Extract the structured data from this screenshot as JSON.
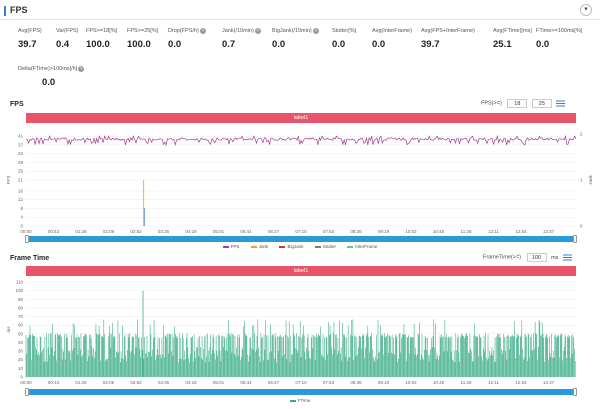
{
  "header": {
    "title": "FPS",
    "collapse_icon": "chevron-down-icon"
  },
  "metrics": [
    {
      "label": "Avg(FPS)",
      "value": "39.7",
      "help": false
    },
    {
      "label": "Var(FPS)",
      "value": "0.4",
      "help": false
    },
    {
      "label": "FPS>=18[%]",
      "value": "100.0",
      "help": false
    },
    {
      "label": "FPS>=25[%]",
      "value": "100.0",
      "help": false
    },
    {
      "label": "Drop(FPS/h)",
      "value": "0.0",
      "help": true
    },
    {
      "label": "Jank(/10min)",
      "value": "0.7",
      "help": true
    },
    {
      "label": "BigJank(/10min)",
      "value": "0.0",
      "help": true
    },
    {
      "label": "Stutter[%]",
      "value": "0.0",
      "help": false
    },
    {
      "label": "Avg(InterFrame)",
      "value": "0.0",
      "help": false
    },
    {
      "label": "Avg(FPS+InterFrame)",
      "value": "39.7",
      "help": false
    },
    {
      "label": "Avg(FTime)[ms]",
      "value": "25.1",
      "help": false
    },
    {
      "label": "FTime>=100ms[%]",
      "value": "0.0",
      "help": false
    },
    {
      "label": "Delta(FTime)>100ms[/h]",
      "value": "0.0",
      "help": true
    }
  ],
  "fps_section": {
    "title": "FPS",
    "threshold_label": "FPS(>=)",
    "threshold_1": "18",
    "threshold_2": "25",
    "band_label": "label1"
  },
  "frametime_section": {
    "title": "Frame Time",
    "threshold_label": "FrameTime(>=)",
    "threshold_value": "100",
    "threshold_unit": "ms",
    "band_label": "label1"
  },
  "colors": {
    "fps": "#a33d96",
    "jank": "#f0a030",
    "bigjank": "#c0392b",
    "stutter": "#7a7a7a",
    "interframe": "#5cc8a8",
    "ftime": "#3fae8a",
    "band": "#e8546a",
    "scrollbar": "#2a9bd8",
    "accent": "#3a7bd5"
  },
  "chart_data": [
    {
      "type": "line",
      "name": "fps-chart",
      "ylabel": "FPS",
      "y2label": "Jank",
      "ylim": [
        0,
        42
      ],
      "yticks": [
        0,
        4,
        8,
        12,
        16,
        21,
        25,
        29,
        33,
        37,
        41
      ],
      "y2lim": [
        0,
        2
      ],
      "y2ticks": [
        0,
        1,
        2
      ],
      "x_ticks": [
        "00:00",
        "00:43",
        "01:26",
        "02:09",
        "02:52",
        "03:35",
        "04:18",
        "05:01",
        "05:44",
        "06:27",
        "07:10",
        "07:53",
        "08:36",
        "09:19",
        "10:02",
        "10:45",
        "11:28",
        "12:11",
        "12:54",
        "13:37"
      ],
      "x_range_seconds": [
        0,
        846
      ],
      "series": [
        {
          "name": "FPS",
          "approx_value": 39.7,
          "range": [
            37,
            41
          ]
        },
        {
          "name": "Jank",
          "events_seconds": [
            181
          ],
          "event_value": 1
        },
        {
          "name": "BigJank",
          "events_seconds": []
        },
        {
          "name": "Stutter",
          "events_seconds": []
        },
        {
          "name": "InterFrame",
          "events_seconds": []
        }
      ],
      "legend": [
        "FPS",
        "Jank",
        "BigJank",
        "Stutter",
        "InterFrame"
      ],
      "legend_position": "bottom-center",
      "grid": true
    },
    {
      "type": "bar",
      "name": "frametime-chart",
      "ylabel": "ms",
      "ylim": [
        0,
        110
      ],
      "yticks": [
        0,
        10,
        20,
        30,
        40,
        50,
        60,
        70,
        80,
        90,
        100,
        110
      ],
      "x_ticks": [
        "00:00",
        "00:43",
        "01:26",
        "02:09",
        "02:52",
        "03:35",
        "04:18",
        "05:01",
        "05:44",
        "06:27",
        "07:10",
        "07:53",
        "08:36",
        "09:19",
        "10:02",
        "10:45",
        "11:28",
        "12:11",
        "12:54",
        "13:37"
      ],
      "x_range_seconds": [
        0,
        846
      ],
      "series": [
        {
          "name": "FTime",
          "typical_range": [
            17,
            50
          ],
          "occasional_range": [
            58,
            67
          ],
          "max_value": 100,
          "max_at_seconds": 180
        }
      ],
      "legend": [
        "FTime"
      ],
      "legend_position": "bottom-center",
      "grid": true
    }
  ]
}
